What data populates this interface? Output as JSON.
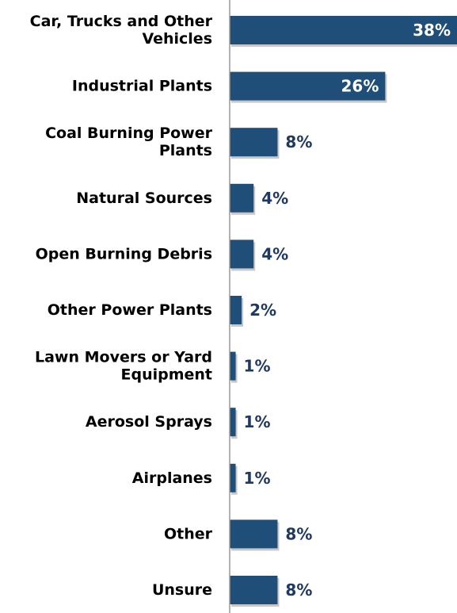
{
  "chart_data": {
    "type": "bar",
    "orientation": "horizontal",
    "categories": [
      [
        "Car, Trucks and Other",
        "Vehicles"
      ],
      [
        "Industrial Plants"
      ],
      [
        "Coal Burning Power",
        "Plants"
      ],
      [
        "Natural Sources"
      ],
      [
        "Open Burning Debris"
      ],
      [
        "Other Power Plants"
      ],
      [
        "Lawn Movers or Yard",
        "Equipment"
      ],
      [
        "Aerosol Sprays"
      ],
      [
        "Airplanes"
      ],
      [
        "Other"
      ],
      [
        "Unsure"
      ]
    ],
    "values": [
      38,
      26,
      8,
      4,
      4,
      2,
      1,
      1,
      1,
      8,
      8
    ],
    "value_labels": [
      "38%",
      "26%",
      "8%",
      "4%",
      "4%",
      "2%",
      "1%",
      "1%",
      "1%",
      "8%",
      "8%"
    ],
    "value_label_inside": [
      true,
      true,
      false,
      false,
      false,
      false,
      false,
      false,
      false,
      false,
      false
    ],
    "xlim": [
      0,
      38
    ],
    "title": "",
    "xlabel": "",
    "ylabel": "",
    "grid": false,
    "legend": "none",
    "colors": {
      "bar": "#1f4e79",
      "inside_label": "#ffffff",
      "outside_label": "#1f3864",
      "axis": "#999999",
      "category_text": "#000000"
    }
  }
}
